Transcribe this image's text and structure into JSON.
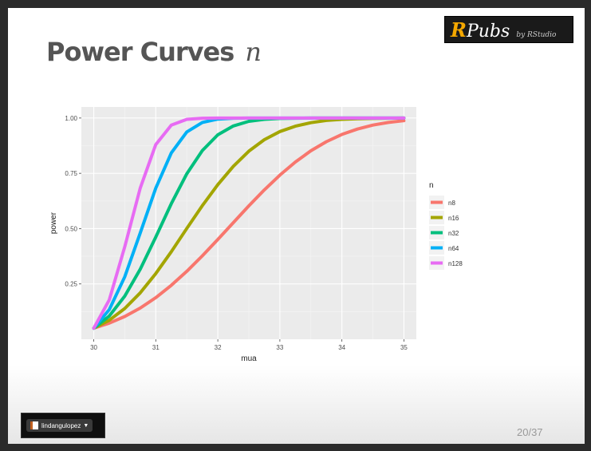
{
  "badge": {
    "r": "R",
    "pubs": "Pubs",
    "by": "by RStudio"
  },
  "title": {
    "text": "Power Curves",
    "math": "n"
  },
  "user": {
    "name": "lindangulopez"
  },
  "page": {
    "number": "20/37"
  },
  "colors": {
    "n8": "#f8766d",
    "n16": "#a3a500",
    "n32": "#00bf7d",
    "n64": "#00b0f6",
    "n128": "#e76bf3",
    "panel": "#ebebeb"
  },
  "chart_data": {
    "type": "line",
    "xlabel": "mua",
    "ylabel": "power",
    "xlim": [
      29.8,
      35.2
    ],
    "ylim": [
      0.0,
      1.05
    ],
    "x_ticks": [
      "30",
      "31",
      "32",
      "33",
      "34",
      "35"
    ],
    "y_ticks": [
      "0.25",
      "0.50",
      "0.75",
      "1.00"
    ],
    "grid": true,
    "legend": {
      "title": "n",
      "placement": "right"
    },
    "x": [
      30,
      30.25,
      30.5,
      30.75,
      31,
      31.25,
      31.5,
      31.75,
      32,
      32.25,
      32.5,
      32.75,
      33,
      33.25,
      33.5,
      33.75,
      34,
      34.25,
      34.5,
      34.75,
      35
    ],
    "series": [
      {
        "name": "n8",
        "color": "#f8766d",
        "values": [
          0.05,
          0.073,
          0.103,
          0.141,
          0.188,
          0.244,
          0.307,
          0.377,
          0.451,
          0.527,
          0.603,
          0.675,
          0.742,
          0.801,
          0.852,
          0.893,
          0.926,
          0.95,
          0.968,
          0.98,
          0.988
        ]
      },
      {
        "name": "n16",
        "color": "#a3a500",
        "values": [
          0.05,
          0.086,
          0.139,
          0.21,
          0.297,
          0.396,
          0.501,
          0.604,
          0.699,
          0.782,
          0.85,
          0.902,
          0.939,
          0.963,
          0.979,
          0.989,
          0.994,
          0.997,
          0.998,
          0.999,
          1.0
        ]
      },
      {
        "name": "n32",
        "color": "#00bf7d",
        "values": [
          0.05,
          0.105,
          0.195,
          0.317,
          0.462,
          0.613,
          0.748,
          0.853,
          0.924,
          0.964,
          0.985,
          0.994,
          0.998,
          0.999,
          1.0,
          1.0,
          1.0,
          1.0,
          1.0,
          1.0,
          1.0
        ]
      },
      {
        "name": "n64",
        "color": "#00b0f6",
        "values": [
          0.05,
          0.134,
          0.282,
          0.481,
          0.683,
          0.842,
          0.937,
          0.98,
          0.995,
          0.999,
          1.0,
          1.0,
          1.0,
          1.0,
          1.0,
          1.0,
          1.0,
          1.0,
          1.0,
          1.0,
          1.0
        ]
      },
      {
        "name": "n128",
        "color": "#e76bf3",
        "values": [
          0.05,
          0.178,
          0.418,
          0.684,
          0.88,
          0.968,
          0.994,
          0.999,
          1.0,
          1.0,
          1.0,
          1.0,
          1.0,
          1.0,
          1.0,
          1.0,
          1.0,
          1.0,
          1.0,
          1.0,
          1.0
        ]
      }
    ]
  }
}
